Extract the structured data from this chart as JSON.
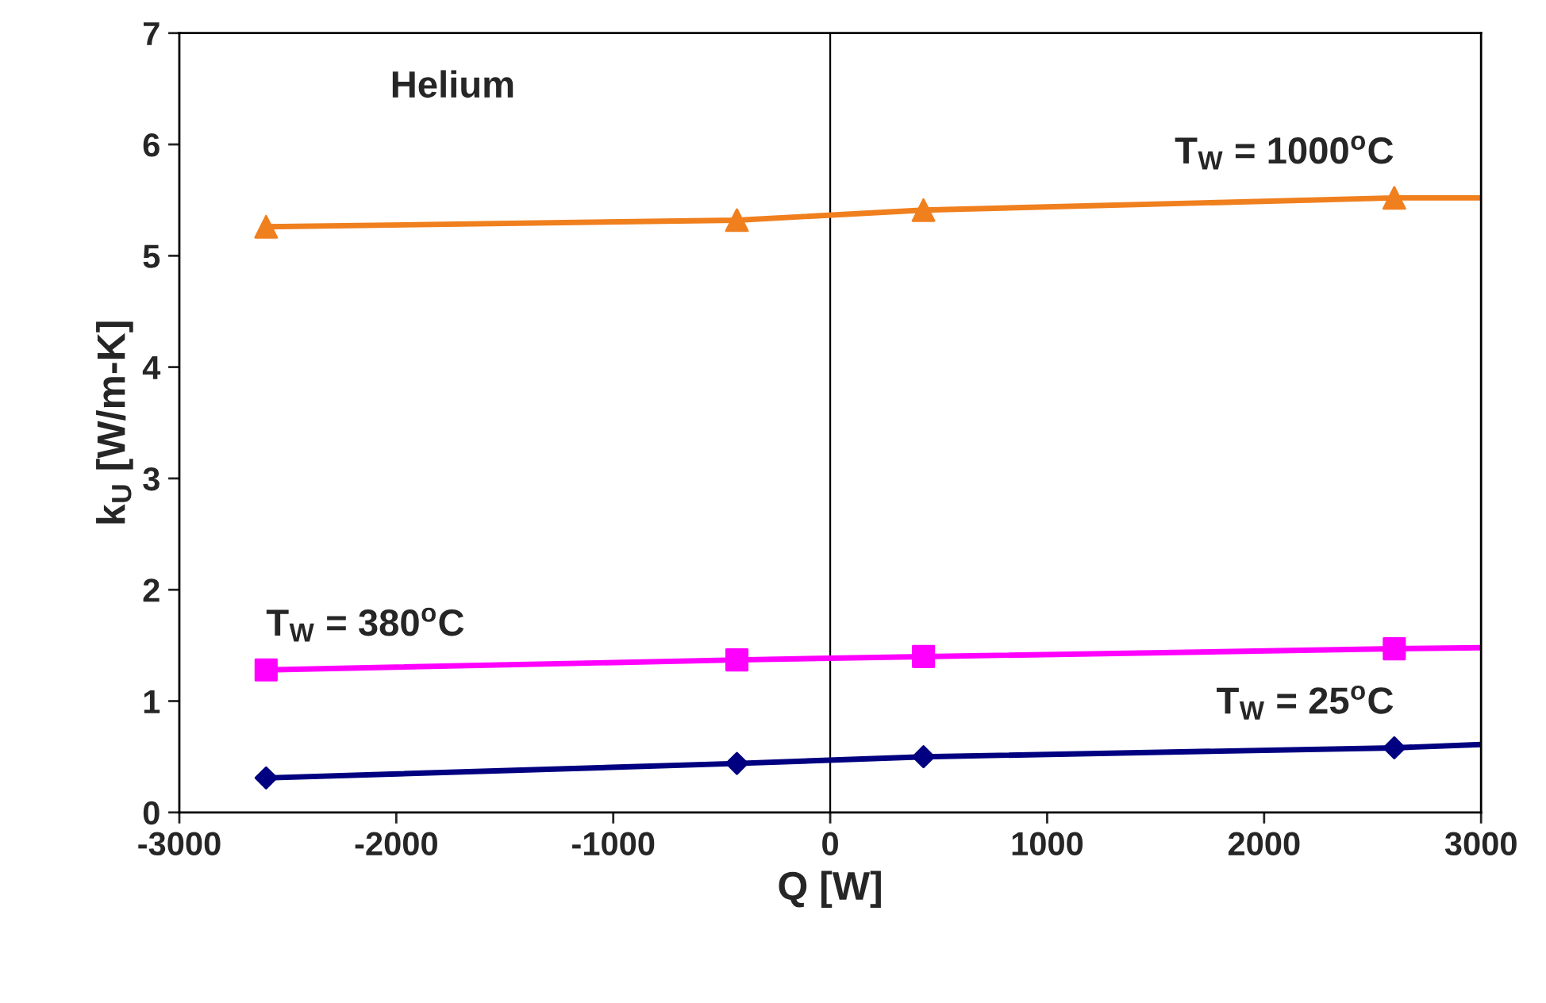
{
  "chart_data": {
    "type": "line",
    "xlabel": "Q [W]",
    "ylabel": "k$_{U}$ [W/m-K]",
    "xlim": [
      -3000,
      3000
    ],
    "xticks": [
      -3000,
      -2000,
      -1000,
      0,
      1000,
      2000,
      3000
    ],
    "ylim": [
      0,
      7
    ],
    "yticks": [
      0,
      1,
      2,
      3,
      4,
      5,
      6,
      7
    ],
    "grid": false,
    "legend": false,
    "ref_lines": [
      {
        "axis": "x",
        "value": 0,
        "color": "#000000"
      }
    ],
    "annotations": [
      "Helium"
    ],
    "series": [
      {
        "name": "T$_{W}$ = 1000$^{o}$C",
        "color": "#f07f1e",
        "marker": "none",
        "x": [
          -2600,
          -430,
          430,
          2600,
          3000
        ],
        "values": [
          5.26,
          5.32,
          5.41,
          5.52,
          5.52
        ]
      },
      {
        "type": "scatter",
        "color": "#f07f1e",
        "marker": "triangle",
        "x": [
          -2600,
          -430,
          430,
          2600
        ],
        "values": [
          5.26,
          5.32,
          5.41,
          5.52
        ]
      },
      {
        "name": "T$_{W}$ = 380$^{o}$C",
        "color": "#ff00ff",
        "marker": "none",
        "x": [
          -2600,
          -430,
          430,
          2600,
          3000
        ],
        "values": [
          1.28,
          1.37,
          1.4,
          1.47,
          1.48
        ]
      },
      {
        "type": "scatter",
        "color": "#ff00ff",
        "marker": "square",
        "x": [
          -2600,
          -430,
          430,
          2600
        ],
        "values": [
          1.28,
          1.37,
          1.4,
          1.47
        ]
      },
      {
        "name": "T$_{W}$ = 25$^{o}$C",
        "color": "#000080",
        "marker": "none",
        "x": [
          -2600,
          -430,
          430,
          2600,
          3000
        ],
        "values": [
          0.31,
          0.44,
          0.5,
          0.58,
          0.61
        ]
      },
      {
        "type": "scatter",
        "color": "#000080",
        "marker": "diamond",
        "x": [
          -2600,
          -430,
          430,
          2600
        ],
        "values": [
          0.31,
          0.44,
          0.5,
          0.58
        ]
      }
    ]
  }
}
